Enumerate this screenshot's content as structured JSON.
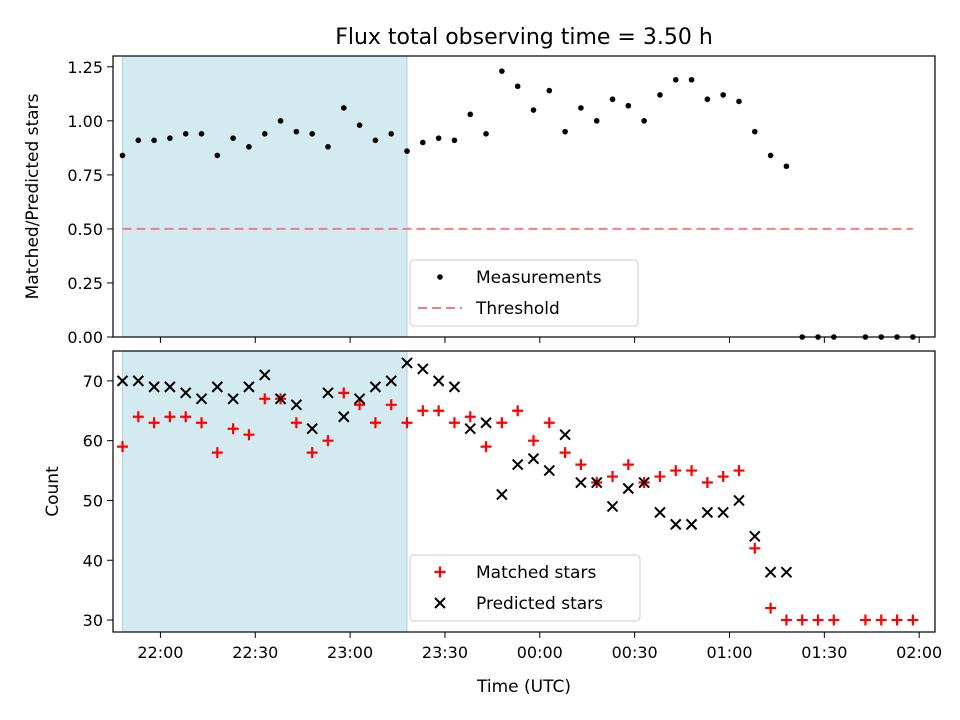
{
  "title": "Flux total observing time = 3.50 h",
  "xlabel": "Time (UTC)",
  "x_tick_labels": [
    "22:00",
    "22:30",
    "23:00",
    "23:30",
    "00:00",
    "00:30",
    "01:00",
    "01:30",
    "02:00"
  ],
  "colors": {
    "band": "#d3eaf1",
    "band_edge": "#a8d4e0",
    "threshold": "#f08080",
    "matched": "#ff0000",
    "predicted": "#000000",
    "measurement": "#000000"
  },
  "chart_data": [
    {
      "type": "scatter",
      "ylabel": "Matched/Predicted stars",
      "y_tick_labels": [
        "0.00",
        "0.25",
        "0.50",
        "0.75",
        "1.00",
        "1.25"
      ],
      "ylim": [
        0,
        1.3
      ],
      "xlim": [
        "21:45",
        "02:05"
      ],
      "grid": false,
      "legend_position": "bottom-center",
      "shaded_interval": [
        "21:48",
        "23:18"
      ],
      "threshold": {
        "name": "Threshold",
        "value": 0.5,
        "from": "21:48",
        "to": "01:58",
        "style": "dashed"
      },
      "series": [
        {
          "name": "Measurements",
          "marker": "dot",
          "x": [
            "21:48",
            "21:53",
            "21:58",
            "22:03",
            "22:08",
            "22:13",
            "22:18",
            "22:23",
            "22:28",
            "22:33",
            "22:38",
            "22:43",
            "22:48",
            "22:53",
            "22:58",
            "23:03",
            "23:08",
            "23:13",
            "23:18",
            "23:23",
            "23:28",
            "23:33",
            "23:38",
            "23:43",
            "23:48",
            "23:53",
            "23:58",
            "00:03",
            "00:08",
            "00:13",
            "00:18",
            "00:23",
            "00:28",
            "00:33",
            "00:38",
            "00:43",
            "00:48",
            "00:53",
            "00:58",
            "01:03",
            "01:08",
            "01:13",
            "01:18",
            "01:23",
            "01:28",
            "01:33",
            "01:43",
            "01:48",
            "01:53",
            "01:58"
          ],
          "y": [
            0.84,
            0.91,
            0.91,
            0.92,
            0.94,
            0.94,
            0.84,
            0.92,
            0.88,
            0.94,
            1.0,
            0.95,
            0.94,
            0.88,
            1.06,
            0.98,
            0.91,
            0.94,
            0.86,
            0.9,
            0.92,
            0.91,
            1.03,
            0.94,
            1.23,
            1.16,
            1.05,
            1.14,
            0.95,
            1.06,
            1.0,
            1.1,
            1.07,
            1.0,
            1.12,
            1.19,
            1.19,
            1.1,
            1.12,
            1.09,
            0.95,
            0.84,
            0.79,
            0.0,
            0.0,
            0.0,
            0.0,
            0.0,
            0.0,
            0.0
          ]
        }
      ]
    },
    {
      "type": "scatter",
      "ylabel": "Count",
      "y_tick_labels": [
        "30",
        "40",
        "50",
        "60",
        "70"
      ],
      "ylim": [
        28,
        75
      ],
      "xlim": [
        "21:45",
        "02:05"
      ],
      "grid": false,
      "legend_position": "bottom-center",
      "shaded_interval": [
        "21:48",
        "23:18"
      ],
      "series": [
        {
          "name": "Matched stars",
          "marker": "plus",
          "x": [
            "21:48",
            "21:53",
            "21:58",
            "22:03",
            "22:08",
            "22:13",
            "22:18",
            "22:23",
            "22:28",
            "22:33",
            "22:38",
            "22:43",
            "22:48",
            "22:53",
            "22:58",
            "23:03",
            "23:08",
            "23:13",
            "23:18",
            "23:23",
            "23:28",
            "23:33",
            "23:38",
            "23:43",
            "23:48",
            "23:53",
            "23:58",
            "00:03",
            "00:08",
            "00:13",
            "00:18",
            "00:23",
            "00:28",
            "00:33",
            "00:38",
            "00:43",
            "00:48",
            "00:53",
            "00:58",
            "01:03",
            "01:08",
            "01:13",
            "01:18",
            "01:23",
            "01:28",
            "01:33",
            "01:43",
            "01:48",
            "01:53",
            "01:58"
          ],
          "y": [
            59,
            64,
            63,
            64,
            64,
            63,
            58,
            62,
            61,
            67,
            67,
            63,
            58,
            60,
            68,
            66,
            63,
            66,
            63,
            65,
            65,
            63,
            64,
            59,
            63,
            65,
            60,
            63,
            58,
            56,
            53,
            54,
            56,
            53,
            54,
            55,
            55,
            53,
            54,
            55,
            42,
            32,
            30,
            30,
            30,
            30,
            30,
            30,
            30,
            30
          ]
        },
        {
          "name": "Predicted stars",
          "marker": "x",
          "x": [
            "21:48",
            "21:53",
            "21:58",
            "22:03",
            "22:08",
            "22:13",
            "22:18",
            "22:23",
            "22:28",
            "22:33",
            "22:38",
            "22:43",
            "22:48",
            "22:53",
            "22:58",
            "23:03",
            "23:08",
            "23:13",
            "23:18",
            "23:23",
            "23:28",
            "23:33",
            "23:38",
            "23:43",
            "23:48",
            "23:53",
            "23:58",
            "00:03",
            "00:08",
            "00:13",
            "00:18",
            "00:23",
            "00:28",
            "00:33",
            "00:38",
            "00:43",
            "00:48",
            "00:53",
            "00:58",
            "01:03",
            "01:08",
            "01:13",
            "01:18"
          ],
          "y": [
            70,
            70,
            69,
            69,
            68,
            67,
            69,
            67,
            69,
            71,
            67,
            66,
            62,
            68,
            64,
            67,
            69,
            70,
            73,
            72,
            70,
            69,
            62,
            63,
            51,
            56,
            57,
            55,
            61,
            53,
            53,
            49,
            52,
            53,
            48,
            46,
            46,
            48,
            48,
            50,
            44,
            38,
            38
          ]
        }
      ]
    }
  ]
}
